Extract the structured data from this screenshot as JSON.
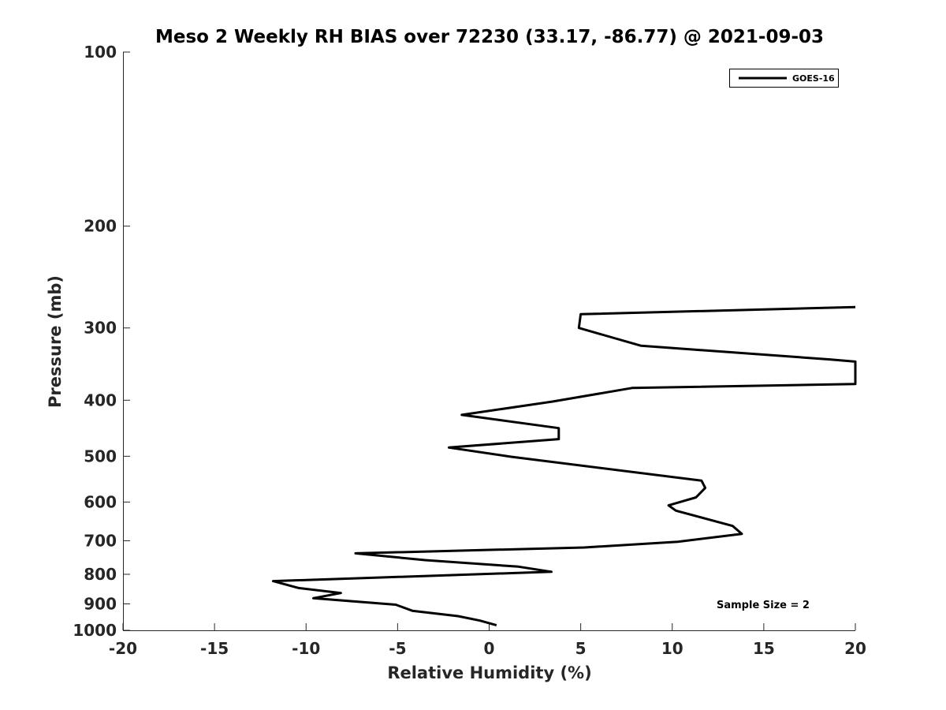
{
  "chart_data": {
    "type": "line",
    "title": "Meso 2 Weekly RH BIAS over 72230 (33.17, -86.77) @ 2021-09-03",
    "xlabel": "Relative Humidity (%)",
    "ylabel": "Pressure (mb)",
    "xlim": [
      -20,
      20
    ],
    "ylim": [
      1000,
      100
    ],
    "y_scale": "log",
    "y_reversed": true,
    "grid": false,
    "x_ticks": [
      -20,
      -15,
      -10,
      -5,
      0,
      5,
      10,
      15,
      20
    ],
    "x_tick_labels": [
      "-20",
      "-15",
      "-10",
      "-5",
      "0",
      "5",
      "10",
      "15",
      "20"
    ],
    "y_ticks": [
      100,
      200,
      300,
      400,
      500,
      600,
      700,
      800,
      900,
      1000
    ],
    "y_tick_labels": [
      "100",
      "200",
      "300",
      "400",
      "500",
      "600",
      "700",
      "800",
      "900",
      "1000"
    ],
    "legend": {
      "position": "top-right",
      "entries": [
        "GOES-16"
      ]
    },
    "annotation": "Sample Size = 2",
    "series": [
      {
        "name": "GOES-16",
        "color": "#000000",
        "points": [
          [
            0.4,
            980
          ],
          [
            -0.5,
            962
          ],
          [
            -1.7,
            945
          ],
          [
            -4.2,
            925
          ],
          [
            -5.1,
            903
          ],
          [
            -9.6,
            880
          ],
          [
            -8.1,
            862
          ],
          [
            -10.4,
            845
          ],
          [
            -11.8,
            822
          ],
          [
            3.4,
            792
          ],
          [
            1.6,
            776
          ],
          [
            -3.5,
            756
          ],
          [
            -7.3,
            736
          ],
          [
            5.2,
            719
          ],
          [
            10.3,
            703
          ],
          [
            13.8,
            681
          ],
          [
            13.3,
            660
          ],
          [
            10.2,
            621
          ],
          [
            9.8,
            608
          ],
          [
            11.3,
            589
          ],
          [
            11.8,
            567
          ],
          [
            11.6,
            551
          ],
          [
            1.2,
            501
          ],
          [
            -2.2,
            483
          ],
          [
            3.8,
            467
          ],
          [
            3.8,
            447
          ],
          [
            -1.5,
            424
          ],
          [
            3.5,
            402
          ],
          [
            7.8,
            381
          ],
          [
            20.0,
            375
          ],
          [
            20.0,
            343
          ],
          [
            18.6,
            340
          ],
          [
            8.3,
            322
          ],
          [
            4.9,
            300
          ],
          [
            5.0,
            284
          ],
          [
            20.0,
            276
          ]
        ]
      }
    ]
  }
}
